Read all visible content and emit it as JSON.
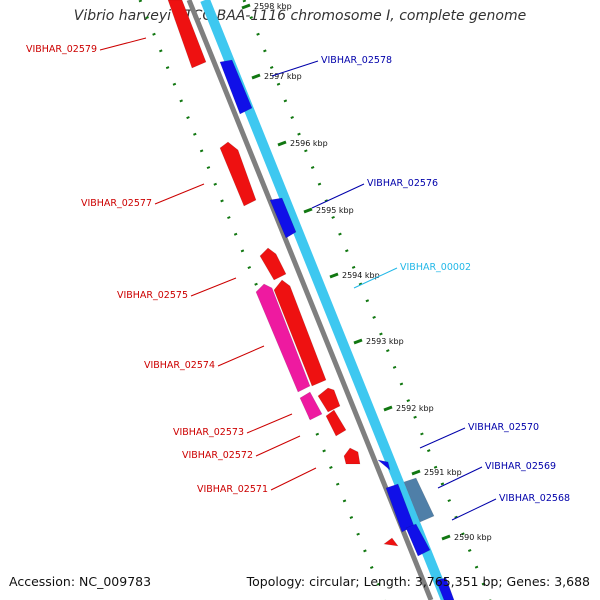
{
  "title": "Vibrio harveyi ATCC BAA-1116 chromosome I, complete genome",
  "footer": {
    "accession": "Accession: NC_009783",
    "summary": "Topology: circular; Length: 3,765,351 bp; Genes: 3,688"
  },
  "colors": {
    "plus_strand_gene": "#1010e8",
    "minus_strand_gene": "#ee1111",
    "pseudo_gene": "#ee1aa0",
    "rna_gene": "#3ec8f0",
    "other_feature": "#4f7fa8",
    "backbone": "#808080",
    "ticks": "#117711"
  },
  "ticks": [
    {
      "label": "2598 kbp"
    },
    {
      "label": "2597 kbp"
    },
    {
      "label": "2596 kbp"
    },
    {
      "label": "2595 kbp"
    },
    {
      "label": "2594 kbp"
    },
    {
      "label": "2593 kbp"
    },
    {
      "label": "2592 kbp"
    },
    {
      "label": "2591 kbp"
    },
    {
      "label": "2590 kbp"
    }
  ],
  "genes": [
    {
      "label": "VIBHAR_02579",
      "color": "#cc0000"
    },
    {
      "label": "VIBHAR_02578",
      "color": "#0000aa"
    },
    {
      "label": "VIBHAR_02577",
      "color": "#cc0000"
    },
    {
      "label": "VIBHAR_02576",
      "color": "#0000aa"
    },
    {
      "label": "VIBHAR_00002",
      "color": "#22b8e8"
    },
    {
      "label": "VIBHAR_02575",
      "color": "#cc0000"
    },
    {
      "label": "VIBHAR_02574",
      "color": "#cc0000"
    },
    {
      "label": "VIBHAR_02573",
      "color": "#cc0000"
    },
    {
      "label": "VIBHAR_02572",
      "color": "#cc0000"
    },
    {
      "label": "VIBHAR_02570",
      "color": "#0000aa"
    },
    {
      "label": "VIBHAR_02571",
      "color": "#cc0000"
    },
    {
      "label": "VIBHAR_02569",
      "color": "#0000aa"
    },
    {
      "label": "VIBHAR_02568",
      "color": "#0000aa"
    }
  ]
}
